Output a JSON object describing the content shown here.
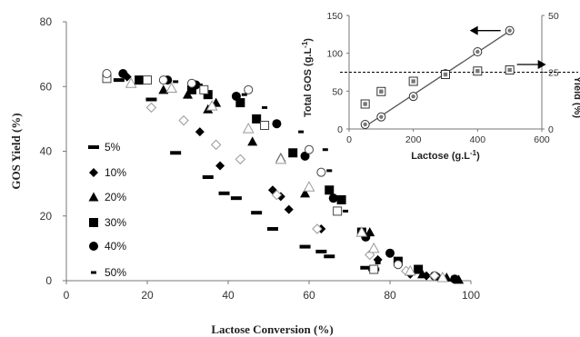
{
  "chart_data": [
    {
      "type": "scatter",
      "title": "",
      "xlabel": "Lactose Conversion (%)",
      "ylabel": "GOS Yield (%)",
      "xlim": [
        0,
        100
      ],
      "ylim": [
        0,
        80
      ],
      "xticks": [
        "0",
        "20",
        "40",
        "60",
        "80",
        "100"
      ],
      "yticks": [
        "0",
        "20",
        "40",
        "60",
        "80"
      ],
      "legend_position": "left-middle",
      "series": [
        {
          "name": "5%",
          "marker": "dash",
          "color": "#000000",
          "points": [
            [
              13,
              62
            ],
            [
              21,
              56
            ],
            [
              27,
              39.5
            ],
            [
              35,
              32
            ],
            [
              39,
              27
            ],
            [
              42,
              25.5
            ],
            [
              47,
              21
            ],
            [
              51,
              16
            ],
            [
              59,
              10.5
            ],
            [
              63,
              9
            ],
            [
              65,
              7.5
            ],
            [
              74,
              4
            ],
            [
              76,
              3.5
            ]
          ]
        },
        {
          "name": "10%",
          "marker": "diamond",
          "color": "#000000",
          "points": [
            [
              15,
              63
            ],
            [
              33,
              46
            ],
            [
              38,
              35.5
            ],
            [
              51,
              28
            ],
            [
              53,
              26
            ],
            [
              55,
              22
            ],
            [
              63,
              16
            ],
            [
              77,
              6.5
            ],
            [
              85,
              2
            ],
            [
              89,
              1.5
            ],
            [
              92,
              1
            ]
          ]
        },
        {
          "name": "20%",
          "marker": "triangle",
          "color": "#000000",
          "points": [
            [
              24,
              59
            ],
            [
              30,
              57.5
            ],
            [
              35,
              53
            ],
            [
              37,
              55
            ],
            [
              46,
              43
            ],
            [
              53,
              38
            ],
            [
              59,
              27
            ],
            [
              75,
              15
            ],
            [
              88,
              2
            ],
            [
              94,
              1
            ],
            [
              97,
              0.3
            ]
          ]
        },
        {
          "name": "30%",
          "marker": "square",
          "color": "#000000",
          "points": [
            [
              18,
              62
            ],
            [
              31,
              59
            ],
            [
              35,
              57.5
            ],
            [
              43,
              55
            ],
            [
              47,
              50
            ],
            [
              56,
              39.5
            ],
            [
              65,
              28
            ],
            [
              68,
              25
            ],
            [
              73,
              15
            ],
            [
              82,
              6
            ],
            [
              87,
              3.5
            ]
          ]
        },
        {
          "name": "40%",
          "marker": "circle",
          "color": "#000000",
          "points": [
            [
              14,
              64
            ],
            [
              25,
              62
            ],
            [
              32,
              60.5
            ],
            [
              42,
              57
            ],
            [
              52,
              48.5
            ],
            [
              59,
              38.5
            ],
            [
              66,
              25.5
            ],
            [
              74,
              13.5
            ],
            [
              80,
              8.5
            ],
            [
              91,
              1.5
            ],
            [
              96,
              0.5
            ]
          ]
        },
        {
          "name": "50%",
          "marker": "bar",
          "color": "#000000",
          "points": [
            [
              27,
              61.5
            ],
            [
              33,
              60.5
            ],
            [
              44,
              57.5
            ],
            [
              49,
              53.5
            ],
            [
              58,
              46
            ],
            [
              64,
              40.5
            ],
            [
              65,
              34
            ],
            [
              69,
              21.5
            ],
            [
              77,
              5.5
            ]
          ]
        },
        {
          "name": "",
          "marker": "diamond-open",
          "color": "#999999",
          "points": [
            [
              21,
              53.5
            ],
            [
              29,
              49.5
            ],
            [
              37,
              42
            ],
            [
              43,
              37.5
            ],
            [
              52,
              26.5
            ],
            [
              62,
              16
            ],
            [
              75,
              8
            ],
            [
              84,
              3
            ],
            [
              91,
              1.5
            ]
          ]
        },
        {
          "name": "",
          "marker": "triangle-open",
          "color": "#999999",
          "points": [
            [
              16,
              61
            ],
            [
              26,
              59.5
            ],
            [
              36,
              54
            ],
            [
              45,
              47
            ],
            [
              53,
              37.5
            ],
            [
              60,
              29
            ],
            [
              73,
              15
            ],
            [
              76,
              10
            ],
            [
              85,
              3
            ],
            [
              93,
              1
            ]
          ]
        },
        {
          "name": "",
          "marker": "square-open",
          "color": "#444444",
          "points": [
            [
              10,
              62.5
            ],
            [
              20,
              62
            ],
            [
              34,
              59
            ],
            [
              49,
              48
            ],
            [
              67,
              21.5
            ],
            [
              76,
              3.5
            ]
          ]
        },
        {
          "name": "",
          "marker": "circle-open",
          "color": "#444444",
          "points": [
            [
              10,
              64
            ],
            [
              24,
              62
            ],
            [
              31,
              61
            ],
            [
              45,
              59
            ],
            [
              60,
              40.5
            ],
            [
              63,
              33.5
            ],
            [
              82,
              5
            ]
          ]
        }
      ],
      "legend_series": [
        "5%",
        "10%",
        "20%",
        "30%",
        "40%",
        "50%"
      ]
    },
    {
      "type": "line",
      "title": "",
      "xlabel": "Lactose (g.L-1)",
      "ylabel": "Total GOS (g.L-1)",
      "ylabel_right": "Yield (%)",
      "xlim": [
        0,
        600
      ],
      "ylim": [
        0,
        150
      ],
      "ylim_right": [
        0,
        50
      ],
      "xticks": [
        "0",
        "200",
        "400",
        "600"
      ],
      "yticks": [
        "0",
        "50",
        "100",
        "150"
      ],
      "yticks_right": [
        "0",
        "25",
        "50"
      ],
      "reference_line_right": 25,
      "series": [
        {
          "name": "",
          "marker": "circle-open",
          "axis": "left",
          "x": [
            50,
            100,
            200,
            300,
            400,
            500
          ],
          "y": [
            6,
            16,
            43,
            73,
            102,
            130
          ]
        },
        {
          "name": "",
          "marker": "square-open",
          "axis": "right",
          "x": [
            50,
            100,
            200,
            300,
            400,
            500
          ],
          "y": [
            11,
            16.5,
            21,
            24,
            25.5,
            26
          ]
        }
      ]
    }
  ],
  "inset_axis_title_parts": {
    "left_main": "Total GOS (g.L",
    "left_sup": "-1",
    "left_close": ")",
    "bottom_main": "Lactose (g.L",
    "bottom_sup": "-1",
    "bottom_close": ")",
    "right": "Yield (%)"
  }
}
